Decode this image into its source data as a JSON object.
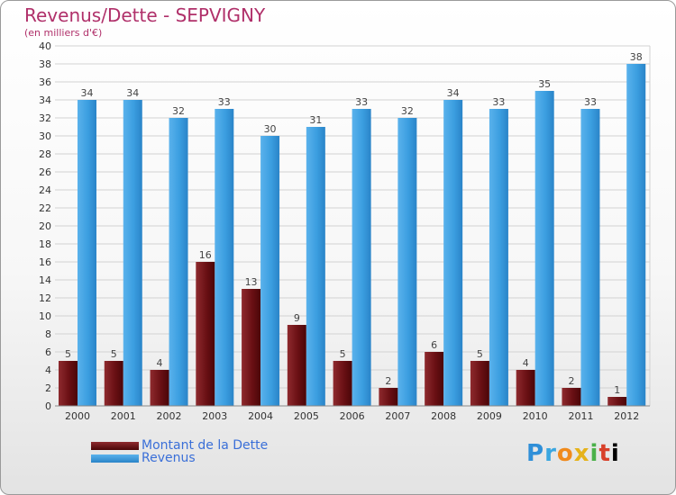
{
  "header": {
    "title": "Revenus/Dette - SEPVIGNY",
    "subtitle": "(en milliers d'€)"
  },
  "colors": {
    "dette": "#6e0f12",
    "revenus": "#3b9ee0",
    "title": "#b0306a"
  },
  "logo": {
    "letters": [
      "P",
      "r",
      "o",
      "x",
      "i",
      "t",
      "i"
    ]
  },
  "chart_data": {
    "type": "bar",
    "title": "Revenus/Dette - SEPVIGNY",
    "subtitle": "(en milliers d'€)",
    "categories": [
      "2000",
      "2001",
      "2002",
      "2003",
      "2004",
      "2005",
      "2006",
      "2007",
      "2008",
      "2009",
      "2010",
      "2011",
      "2012"
    ],
    "series": [
      {
        "name": "Montant de la Dette",
        "values": [
          5,
          5,
          4,
          16,
          13,
          9,
          5,
          2,
          6,
          5,
          4,
          2,
          1
        ]
      },
      {
        "name": "Revenus",
        "values": [
          34,
          34,
          32,
          33,
          30,
          31,
          33,
          32,
          34,
          33,
          35,
          33,
          38
        ]
      }
    ],
    "ylim": [
      0,
      40
    ],
    "yticks": [
      0,
      2,
      4,
      6,
      8,
      10,
      12,
      14,
      16,
      18,
      20,
      22,
      24,
      26,
      28,
      30,
      32,
      34,
      36,
      38,
      40
    ],
    "xlabel": "",
    "ylabel": "",
    "grid": true,
    "legend": "bottom-left"
  }
}
